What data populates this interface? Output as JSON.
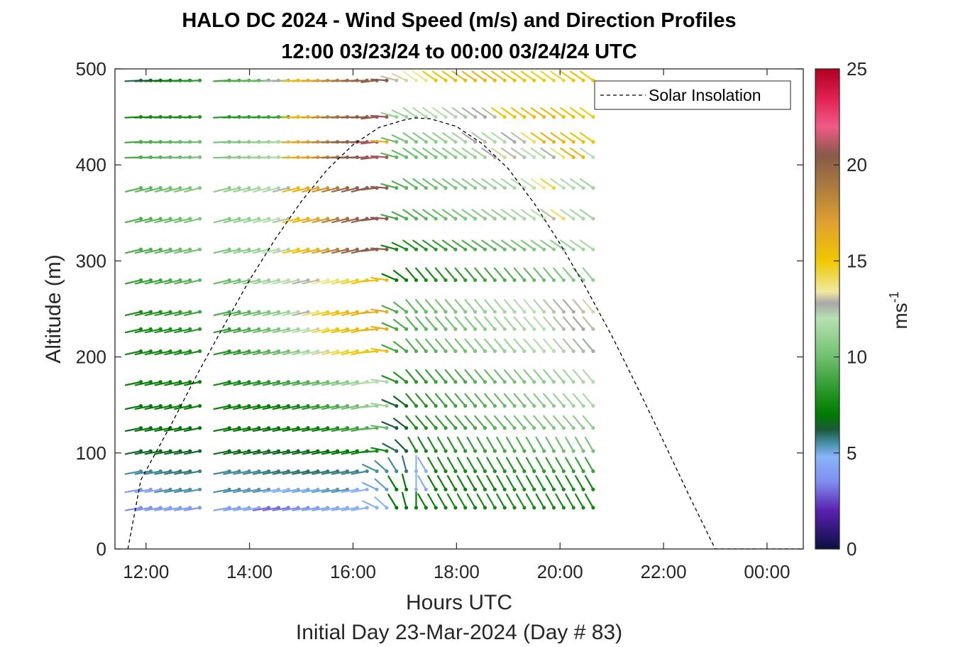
{
  "chart_data": {
    "type": "wind-barb-profile",
    "title_line1": "HALO DC 2024 - Wind Speed (m/s) and Direction Profiles",
    "title_line2": "12:00 03/23/24 to 00:00 03/24/24  UTC",
    "xlabel": "Hours UTC",
    "subtitle": "Initial Day 23-Mar-2024 (Day # 83)",
    "ylabel": "Altitude (m)",
    "x_ticks": [
      {
        "value": 12,
        "label": "12:00"
      },
      {
        "value": 14,
        "label": "14:00"
      },
      {
        "value": 16,
        "label": "16:00"
      },
      {
        "value": 18,
        "label": "18:00"
      },
      {
        "value": 20,
        "label": "20:00"
      },
      {
        "value": 22,
        "label": "22:00"
      },
      {
        "value": 24,
        "label": "00:00"
      }
    ],
    "y_ticks": [
      0,
      100,
      200,
      300,
      400,
      500
    ],
    "xlim": [
      11.4,
      24.7
    ],
    "ylim": [
      0,
      500
    ],
    "colorbar": {
      "label": "ms",
      "label_exponent": "-1",
      "range": [
        0,
        25
      ],
      "ticks": [
        0,
        5,
        10,
        15,
        20,
        25
      ],
      "stops": [
        {
          "v": 0,
          "c": "#0a1040"
        },
        {
          "v": 2,
          "c": "#5a20b0"
        },
        {
          "v": 3.5,
          "c": "#7f8ef0"
        },
        {
          "v": 4.8,
          "c": "#8ab4f8"
        },
        {
          "v": 5.6,
          "c": "#3f8a9a"
        },
        {
          "v": 6.2,
          "c": "#1a5a3a"
        },
        {
          "v": 7,
          "c": "#007a00"
        },
        {
          "v": 8,
          "c": "#1f921f"
        },
        {
          "v": 10,
          "c": "#6fbf6f"
        },
        {
          "v": 12,
          "c": "#b8e0b0"
        },
        {
          "v": 12.8,
          "c": "#a8a8a8"
        },
        {
          "v": 13.4,
          "c": "#f0e8a0"
        },
        {
          "v": 15,
          "c": "#f0c800"
        },
        {
          "v": 17,
          "c": "#e0a030"
        },
        {
          "v": 19,
          "c": "#a87840"
        },
        {
          "v": 20.5,
          "c": "#885a48"
        },
        {
          "v": 22,
          "c": "#f05a88"
        },
        {
          "v": 23.5,
          "c": "#e02050"
        },
        {
          "v": 25,
          "c": "#b00020"
        }
      ]
    },
    "legend": {
      "label": "Solar Insolation",
      "position": "top-right"
    },
    "solar_insolation": {
      "x": [
        11.65,
        11.9,
        12.5,
        13.0,
        13.5,
        14.0,
        14.5,
        15.0,
        15.5,
        16.0,
        16.5,
        17.0,
        17.2,
        17.5,
        18.0,
        18.5,
        19.0,
        19.5,
        20.0,
        20.5,
        21.0,
        21.5,
        22.0,
        22.5,
        23.0,
        24.7
      ],
      "y": [
        0,
        72,
        131,
        183,
        232,
        280,
        323,
        362,
        395,
        421,
        439,
        447,
        449,
        448,
        440,
        422,
        396,
        360,
        318,
        272,
        222,
        168,
        112,
        55,
        0,
        0
      ]
    },
    "barbs": {
      "altitudes": [
        43,
        62,
        81,
        102,
        126,
        149,
        174,
        206,
        229,
        247,
        280,
        312,
        344,
        376,
        408,
        424,
        450,
        488
      ],
      "time_start": 11.9,
      "time_step": 0.19,
      "time_end": 20.8,
      "gap_times": [
        13.2,
        13.6
      ],
      "speeds_by_altitude": [
        [
          3.5,
          3.6,
          3.8,
          4.0,
          4.2,
          4.0,
          3.8,
          3.9,
          4.0,
          4.3,
          4.5,
          3.0,
          3.0,
          3.2,
          3.5,
          3.7,
          4.0,
          4.2,
          4.4,
          4.6,
          4.5,
          4.8,
          4.7,
          4.8,
          7.0,
          7.0,
          7.2,
          7.2,
          7.3,
          7.4,
          7.5,
          7.6,
          7.5,
          7.6,
          7.8,
          7.6,
          7.7,
          7.8,
          7.7,
          7.6,
          7.6,
          7.7,
          7.8,
          7.6,
          7.5,
          7.5,
          7.4
        ],
        [
          3.8,
          4.0,
          4.3,
          5.5,
          5.5,
          5.5,
          5.4,
          5.5,
          5.5,
          5.3,
          5.4,
          5.4,
          4.6,
          4.8,
          5.0,
          5.0,
          5.0,
          5.2,
          5.3,
          5.4,
          4.6,
          4.8,
          5.0,
          5.2,
          7.0,
          7.0,
          4.8,
          4.5,
          7.2,
          7.3,
          7.3,
          7.3,
          7.4,
          7.5,
          7.5,
          7.6,
          7.7,
          7.8,
          7.7,
          7.8,
          7.7,
          7.7,
          7.8,
          7.6,
          7.6,
          7.5,
          7.4
        ],
        [
          5.5,
          5.6,
          5.6,
          5.7,
          5.8,
          5.8,
          5.7,
          5.6,
          5.6,
          5.5,
          5.6,
          5.7,
          5.8,
          5.8,
          5.8,
          5.9,
          5.9,
          5.8,
          5.8,
          5.7,
          5.7,
          5.6,
          5.5,
          5.5,
          5.6,
          5.8,
          4.8,
          4.6,
          7.5,
          7.6,
          7.7,
          7.8,
          7.9,
          8.0,
          8.0,
          8.1,
          8.2,
          8.2,
          8.3,
          8.4,
          8.5,
          8.6,
          8.6,
          8.7,
          8.8,
          8.9,
          9.0
        ],
        [
          6.4,
          6.5,
          6.5,
          6.6,
          6.6,
          6.5,
          6.5,
          6.6,
          6.7,
          6.7,
          6.6,
          6.6,
          6.5,
          6.5,
          6.6,
          6.7,
          6.8,
          6.8,
          6.9,
          7.0,
          7.2,
          7.4,
          7.6,
          7.6,
          6.0,
          6.2,
          7.5,
          7.6,
          7.8,
          8.0,
          8.2,
          8.3,
          8.5,
          8.6,
          8.8,
          9.0,
          9.1,
          9.2,
          9.4,
          9.6,
          9.8,
          10.0,
          10.1,
          10.2,
          10.3,
          10.4,
          10.5
        ],
        [
          6.7,
          6.8,
          6.8,
          6.9,
          6.9,
          6.8,
          6.8,
          6.9,
          7.0,
          7.0,
          6.9,
          6.8,
          6.8,
          6.9,
          7.0,
          7.1,
          7.2,
          7.4,
          7.8,
          8.2,
          8.6,
          9.0,
          9.5,
          9.8,
          6.2,
          6.4,
          7.8,
          8.0,
          8.2,
          8.4,
          8.6,
          8.8,
          9.0,
          9.2,
          9.4,
          9.6,
          9.8,
          10.0,
          10.2,
          10.4,
          10.5,
          10.6,
          10.7,
          10.8,
          10.9,
          11.0,
          11.1
        ],
        [
          7.0,
          7.1,
          7.1,
          7.2,
          7.2,
          7.1,
          7.1,
          7.2,
          7.2,
          7.3,
          7.2,
          7.1,
          7.1,
          7.3,
          7.5,
          7.8,
          8.2,
          8.6,
          9.0,
          9.5,
          10.0,
          10.5,
          11.0,
          11.2,
          6.4,
          6.6,
          8.0,
          8.2,
          8.4,
          8.6,
          8.8,
          9.0,
          9.2,
          9.4,
          9.6,
          9.8,
          10.0,
          10.2,
          10.4,
          10.6,
          10.8,
          11.0,
          11.2,
          11.4,
          11.6,
          12.0,
          12.6
        ],
        [
          7.2,
          7.3,
          7.3,
          7.4,
          7.4,
          7.3,
          7.3,
          7.5,
          7.6,
          7.8,
          8.0,
          8.2,
          8.4,
          8.7,
          9.0,
          9.3,
          9.6,
          10.0,
          10.4,
          10.8,
          11.2,
          11.6,
          12.0,
          12.2,
          8.0,
          8.0,
          8.2,
          8.4,
          8.6,
          8.8,
          9.0,
          9.2,
          9.4,
          9.6,
          9.8,
          10.0,
          10.2,
          10.4,
          10.6,
          10.8,
          11.0,
          11.2,
          11.4,
          11.6,
          11.8,
          12.2,
          12.7
        ],
        [
          7.5,
          7.6,
          7.6,
          7.7,
          7.8,
          7.8,
          7.9,
          8.1,
          8.3,
          8.6,
          9.0,
          9.4,
          9.8,
          10.2,
          10.8,
          11.4,
          12.0,
          13.2,
          14.0,
          14.4,
          14.8,
          15.0,
          15.2,
          15.4,
          8.8,
          9.0,
          9.2,
          9.4,
          9.6,
          9.8,
          10.0,
          10.2,
          10.4,
          10.6,
          10.8,
          11.0,
          11.2,
          11.4,
          11.6,
          11.8,
          12.0,
          12.2,
          12.4,
          12.6,
          12.8,
          13.5,
          14.0
        ],
        [
          7.6,
          7.7,
          7.8,
          7.9,
          8.0,
          8.1,
          8.3,
          8.5,
          8.8,
          9.2,
          9.6,
          10.0,
          10.4,
          10.8,
          11.4,
          12.0,
          13.2,
          14.2,
          15.0,
          15.4,
          15.6,
          15.8,
          16.0,
          16.2,
          9.0,
          9.2,
          9.4,
          9.6,
          9.8,
          10.0,
          10.2,
          10.4,
          10.6,
          10.8,
          11.0,
          11.2,
          11.4,
          11.6,
          11.8,
          12.0,
          12.2,
          12.4,
          12.6,
          12.8,
          13.0,
          13.8,
          15.0
        ],
        [
          7.8,
          7.9,
          8.0,
          8.2,
          8.4,
          8.6,
          8.8,
          9.0,
          9.3,
          9.6,
          10.0,
          10.4,
          10.8,
          11.2,
          11.8,
          12.6,
          13.8,
          14.6,
          15.2,
          15.6,
          15.8,
          16.0,
          16.2,
          16.4,
          9.2,
          9.4,
          9.6,
          9.8,
          10.0,
          10.2,
          10.4,
          10.6,
          10.8,
          11.0,
          11.2,
          11.4,
          11.6,
          11.8,
          12.0,
          12.2,
          12.4,
          12.6,
          12.8,
          13.0,
          13.2,
          14.0,
          14.4
        ],
        [
          8.5,
          8.6,
          8.8,
          9.0,
          9.2,
          9.4,
          9.6,
          9.8,
          10.0,
          10.4,
          10.8,
          11.2,
          11.6,
          12.0,
          12.2,
          12.6,
          13.0,
          13.4,
          13.8,
          14.2,
          14.6,
          15.0,
          15.4,
          15.6,
          7.0,
          7.2,
          7.4,
          7.6,
          7.8,
          8.0,
          8.2,
          8.4,
          8.6,
          8.8,
          9.0,
          9.2,
          9.4,
          9.6,
          9.8,
          10.0,
          10.2,
          10.4,
          10.6,
          10.8,
          11.0,
          11.4,
          12.8
        ],
        [
          9.0,
          9.2,
          9.4,
          9.6,
          9.8,
          10.0,
          10.2,
          10.4,
          10.6,
          10.8,
          11.0,
          11.4,
          11.8,
          12.2,
          15.0,
          15.6,
          16.2,
          17.0,
          18.4,
          19.5,
          20.0,
          20.2,
          20.4,
          20.6,
          7.6,
          7.8,
          8.0,
          8.2,
          8.4,
          8.6,
          8.8,
          9.0,
          9.2,
          9.4,
          9.6,
          9.8,
          10.0,
          10.2,
          10.4,
          10.6,
          10.8,
          11.0,
          11.2,
          11.4,
          11.6,
          11.8,
          12.0
        ],
        [
          9.2,
          9.4,
          9.6,
          9.8,
          10.0,
          10.2,
          10.4,
          10.6,
          10.8,
          11.0,
          11.2,
          11.6,
          12.0,
          12.4,
          15.4,
          16.0,
          16.6,
          17.4,
          18.6,
          19.6,
          20.0,
          20.2,
          20.4,
          20.6,
          9.0,
          9.2,
          9.4,
          9.6,
          9.8,
          10.0,
          10.2,
          10.4,
          10.6,
          10.8,
          11.0,
          11.2,
          11.4,
          11.6,
          11.8,
          12.0,
          13.0,
          14.0,
          11.8,
          11.6,
          11.4,
          11.2,
          11.0
        ],
        [
          9.4,
          9.6,
          9.8,
          10.0,
          10.2,
          10.4,
          10.6,
          10.8,
          11.0,
          11.2,
          11.4,
          11.8,
          12.2,
          12.6,
          15.6,
          16.2,
          16.8,
          17.6,
          18.8,
          19.8,
          20.2,
          20.4,
          20.6,
          20.8,
          9.2,
          9.4,
          9.6,
          9.8,
          10.0,
          10.2,
          10.4,
          10.6,
          10.8,
          11.0,
          11.2,
          11.4,
          11.6,
          11.8,
          12.0,
          13.5,
          14.5,
          12.0,
          11.8,
          11.6,
          11.4,
          11.2,
          11.0
        ],
        [
          9.0,
          9.2,
          9.4,
          9.6,
          9.8,
          10.0,
          10.2,
          10.4,
          10.6,
          10.8,
          11.0,
          11.2,
          11.4,
          11.8,
          16.0,
          16.5,
          17.0,
          18.0,
          19.2,
          20.0,
          20.4,
          20.6,
          20.8,
          21.0,
          9.6,
          9.8,
          10.0,
          10.2,
          10.4,
          10.6,
          10.8,
          11.0,
          11.2,
          11.4,
          12.8,
          13.2,
          13.0,
          12.4,
          12.0,
          11.8,
          12.6,
          13.8,
          16.0,
          15.8,
          12.0,
          11.6,
          11.2
        ],
        [
          8.8,
          9.0,
          9.2,
          9.4,
          9.6,
          9.8,
          10.0,
          10.2,
          10.4,
          10.6,
          10.8,
          11.0,
          11.2,
          11.6,
          16.2,
          16.8,
          17.4,
          18.4,
          19.4,
          20.2,
          20.6,
          20.8,
          21.0,
          16.0,
          10.0,
          10.2,
          10.4,
          10.6,
          10.8,
          11.0,
          11.2,
          11.4,
          12.8,
          13.0,
          11.6,
          11.8,
          12.8,
          13.0,
          14.0,
          15.6,
          16.2,
          15.8,
          15.6,
          15.4,
          15.2,
          15.0,
          12.6
        ],
        [
          7.5,
          7.6,
          7.7,
          7.8,
          7.9,
          8.0,
          8.1,
          8.2,
          8.3,
          8.4,
          8.5,
          8.6,
          8.7,
          8.8,
          15.6,
          16.0,
          16.8,
          18.0,
          19.0,
          19.6,
          20.0,
          20.4,
          20.6,
          20.8,
          11.0,
          11.2,
          11.4,
          11.6,
          11.8,
          12.0,
          12.2,
          12.4,
          12.6,
          12.8,
          13.0,
          15.0,
          15.2,
          15.4,
          15.6,
          15.8,
          15.6,
          15.4,
          15.2,
          15.0,
          14.8,
          14.6,
          12.6
        ],
        [
          6.0,
          6.2,
          6.6,
          7.0,
          7.6,
          8.0,
          8.4,
          8.8,
          9.0,
          9.4,
          9.6,
          9.8,
          12.6,
          12.8,
          15.4,
          15.8,
          16.4,
          17.2,
          18.2,
          19.0,
          19.6,
          20.0,
          20.2,
          20.4,
          13.0,
          13.2,
          13.4,
          13.6,
          15.0,
          15.2,
          15.4,
          15.6,
          15.8,
          16.0,
          15.8,
          15.6,
          15.4,
          15.2,
          15.0,
          14.8,
          14.6,
          14.4,
          15.0,
          15.4,
          15.0,
          14.8,
          14.6
        ]
      ]
    }
  }
}
